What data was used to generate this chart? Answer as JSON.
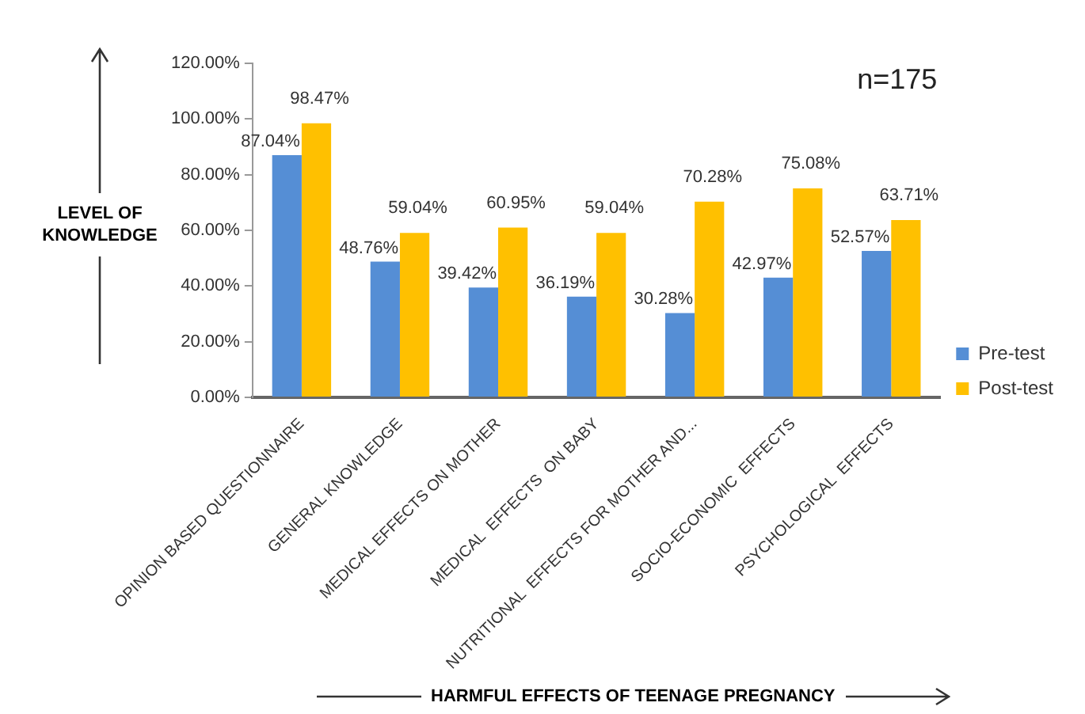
{
  "chart_data": {
    "type": "bar",
    "xlabel": "HARMFUL EFFECTS OF TEENAGE PREGNANCY",
    "ylabel": "LEVEL OF KNOWLEDGE",
    "categories": [
      "OPINION BASED QUESTIONNAIRE",
      "GENERAL KNOWLEDGE",
      "MEDICAL EFFECTS ON MOTHER",
      "MEDICAL  EFFECTS  ON BABY",
      "NUTRITIONAL  EFFECTS FOR MOTHER AND...",
      "SOCIO-ECONOMIC  EFFECTS",
      "PSYCHOLOGICAL  EFFECTS"
    ],
    "series": [
      {
        "name": "Pre-test",
        "color": "#558ed5",
        "values": [
          87.04,
          48.76,
          39.42,
          36.19,
          30.28,
          42.97,
          52.57
        ],
        "value_labels": [
          "87.04%",
          "48.76%",
          "39.42%",
          "36.19%",
          "30.28%",
          "42.97%",
          "52.57%"
        ]
      },
      {
        "name": "Post-test",
        "color": "#ffc000",
        "values": [
          98.47,
          59.04,
          60.95,
          59.04,
          70.28,
          75.08,
          63.71
        ],
        "value_labels": [
          "98.47%",
          "59.04%",
          "60.95%",
          "59.04%",
          "70.28%",
          "75.08%",
          "63.71%"
        ]
      }
    ],
    "ylim": [
      0,
      120
    ],
    "yticks": [
      {
        "value": 0,
        "label": "0.00%"
      },
      {
        "value": 20,
        "label": "20.00%"
      },
      {
        "value": 40,
        "label": "40.00%"
      },
      {
        "value": 60,
        "label": "60.00%"
      },
      {
        "value": 80,
        "label": "80.00%"
      },
      {
        "value": 100,
        "label": "100.00%"
      },
      {
        "value": 120,
        "label": "120.00%"
      }
    ],
    "grid": false,
    "legend": "right",
    "annotations": [
      "n=175"
    ]
  }
}
